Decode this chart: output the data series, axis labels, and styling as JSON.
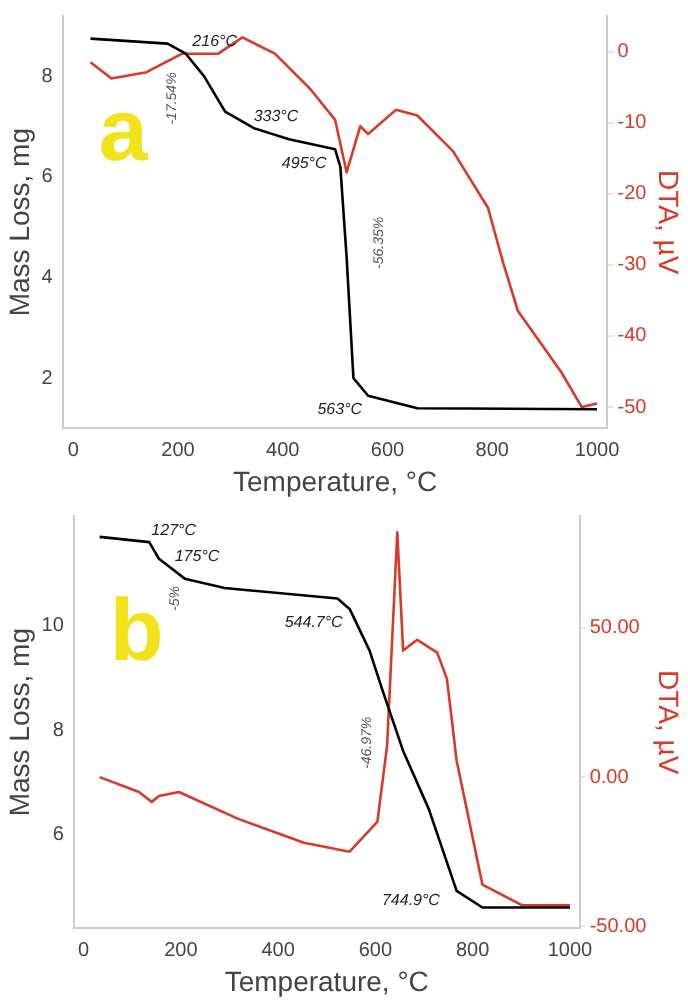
{
  "chart_data": [
    {
      "type": "line",
      "xlabel": "Temperature, °C",
      "ylabel": "Mass Loss, mg",
      "y2label": "DTA, µV",
      "xlim": [
        -20,
        1020
      ],
      "xticks": [
        0,
        200,
        400,
        600,
        800,
        1000
      ],
      "ylim": [
        1,
        9.2
      ],
      "yticks": [
        2,
        4,
        6,
        8
      ],
      "y2lim": [
        -53,
        5
      ],
      "y2ticks": [
        0,
        -10,
        -20,
        -30,
        -40,
        -50
      ],
      "grid": false,
      "legend": false,
      "marker": "none",
      "line_style": "solid",
      "annotations": [
        "a",
        {
          "text": "216°C",
          "x": 216,
          "y": 8.45
        },
        {
          "text": "333°C",
          "x": 333,
          "y": 6.97
        },
        {
          "text": "495°C",
          "x": 495,
          "y": 6.55
        },
        {
          "text": "563°C",
          "x": 563,
          "y": 1.65
        },
        "-17.54%",
        "-56.35%"
      ],
      "series": [
        {
          "type": "line",
          "color": "#000000",
          "x": [
            33,
            180,
            215,
            250,
            290,
            345,
            412,
            500,
            510,
            522,
            535,
            563,
            657,
            1000
          ],
          "values": [
            8.75,
            8.65,
            8.45,
            8.0,
            7.3,
            6.97,
            6.75,
            6.55,
            6.2,
            4.4,
            2.0,
            1.65,
            1.4,
            1.38
          ]
        },
        {
          "type": "line",
          "axis": "y2",
          "color": "#d83a2a",
          "x": [
            33,
            73,
            140,
            208,
            277,
            323,
            385,
            453,
            500,
            522,
            548,
            563,
            616,
            657,
            725,
            792,
            820,
            849,
            931,
            971,
            1000
          ],
          "values": [
            -1.5,
            -3.8,
            -2.9,
            -0.3,
            -0.3,
            2,
            -0.3,
            -5.3,
            -9.6,
            -17,
            -10.5,
            -11.6,
            -8.2,
            -9,
            -14,
            -22,
            -29.5,
            -36.5,
            -45,
            -50,
            -49.5
          ]
        }
      ]
    },
    {
      "type": "line",
      "xlabel": "Temperature, °C",
      "ylabel": "Mass Loss, mg",
      "y2label": "DTA, µV",
      "xlim": [
        -20,
        1020
      ],
      "xticks": [
        0,
        200,
        400,
        600,
        800,
        1000
      ],
      "ylim": [
        4.2,
        12.1
      ],
      "yticks": [
        6,
        8,
        10
      ],
      "y2lim": [
        -50.7,
        87.5
      ],
      "y2ticks": [
        {
          "value": 50,
          "label": "50.00"
        },
        {
          "value": 0,
          "label": "0.00"
        },
        {
          "value": -50,
          "label": "-50.00"
        }
      ],
      "grid": false,
      "legend": false,
      "marker": "none",
      "line_style": "solid",
      "annotations": [
        "b",
        {
          "text": "127°C",
          "x": 127,
          "y": 11.6
        },
        {
          "text": "175°C",
          "x": 175,
          "y": 11.1
        },
        {
          "text": "544.7°C",
          "x": 545,
          "y": 10.32
        },
        {
          "text": "744.9°C",
          "x": 745,
          "y": 5
        },
        "-5%",
        "-46.97%"
      ],
      "series": [
        {
          "type": "line",
          "color": "#000000",
          "x": [
            33,
            135,
            155,
            208,
            290,
            522,
            547,
            588,
            616,
            657,
            710,
            767,
            820,
            1000
          ],
          "values": [
            11.7,
            11.6,
            11.28,
            10.9,
            10.72,
            10.52,
            10.32,
            9.52,
            8.72,
            7.6,
            6.48,
            4.92,
            4.6,
            4.6
          ]
        },
        {
          "type": "line",
          "axis": "y2",
          "color": "#d83a2a",
          "x": [
            33,
            114,
            140,
            155,
            196,
            318,
            453,
            547,
            604,
            624,
            645,
            657,
            686,
            727,
            747,
            767,
            820,
            902,
            1000
          ],
          "values": [
            0,
            -5,
            -8.3,
            -6.3,
            -5,
            -14,
            -22,
            -25,
            -15,
            10.4,
            82,
            42.4,
            46,
            41.7,
            33,
            5.5,
            -36,
            -43,
            -43
          ]
        }
      ]
    }
  ]
}
